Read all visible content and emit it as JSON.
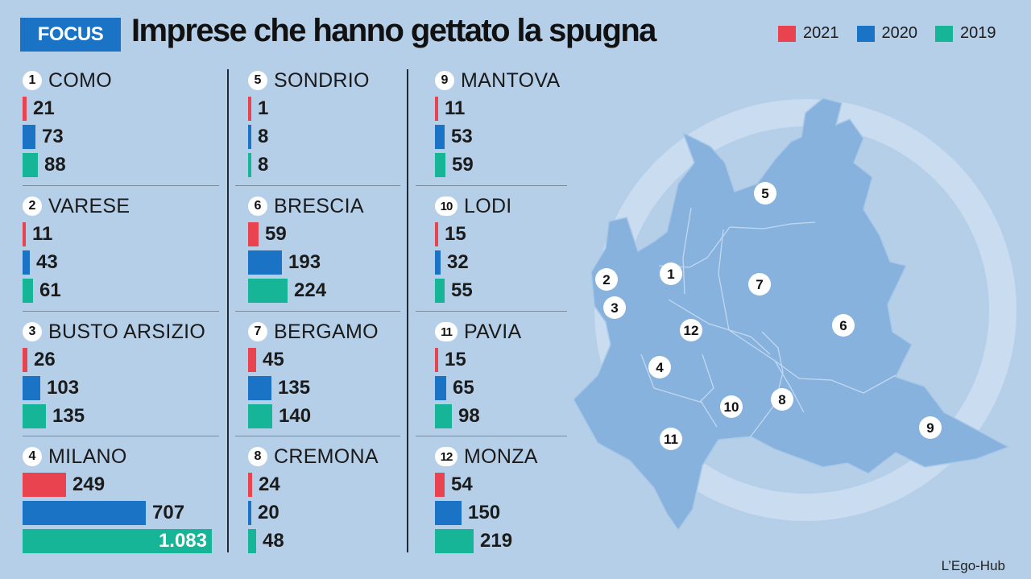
{
  "header": {
    "badge": "FOCUS",
    "title": "Imprese che hanno gettato la spugna"
  },
  "credit": "L’Ego-Hub",
  "colors": {
    "y2021": "#e8434f",
    "y2020": "#1a73c4",
    "y2019": "#17b597"
  },
  "chart_data": {
    "type": "bar",
    "orientation": "horizontal",
    "title": "Imprese che hanno gettato la spugna",
    "series": [
      {
        "name": "2021",
        "color": "#e8434f"
      },
      {
        "name": "2020",
        "color": "#1a73c4"
      },
      {
        "name": "2019",
        "color": "#17b597"
      }
    ],
    "provinces": [
      {
        "num": "1",
        "name": "COMO",
        "values": [
          21,
          73,
          88
        ],
        "labels": [
          "21",
          "73",
          "88"
        ]
      },
      {
        "num": "2",
        "name": "VARESE",
        "values": [
          11,
          43,
          61
        ],
        "labels": [
          "11",
          "43",
          "61"
        ]
      },
      {
        "num": "3",
        "name": "BUSTO ARSIZIO",
        "values": [
          26,
          103,
          135
        ],
        "labels": [
          "26",
          "103",
          "135"
        ]
      },
      {
        "num": "4",
        "name": "MILANO",
        "values": [
          249,
          707,
          1083
        ],
        "labels": [
          "249",
          "707",
          "1.083"
        ]
      },
      {
        "num": "5",
        "name": "SONDRIO",
        "values": [
          1,
          8,
          8
        ],
        "labels": [
          "1",
          "8",
          "8"
        ]
      },
      {
        "num": "6",
        "name": "BRESCIA",
        "values": [
          59,
          193,
          224
        ],
        "labels": [
          "59",
          "193",
          "224"
        ]
      },
      {
        "num": "7",
        "name": "BERGAMO",
        "values": [
          45,
          135,
          140
        ],
        "labels": [
          "45",
          "135",
          "140"
        ]
      },
      {
        "num": "8",
        "name": "CREMONA",
        "values": [
          24,
          20,
          48
        ],
        "labels": [
          "24",
          "20",
          "48"
        ]
      },
      {
        "num": "9",
        "name": "MANTOVA",
        "values": [
          11,
          53,
          59
        ],
        "labels": [
          "11",
          "53",
          "59"
        ]
      },
      {
        "num": "10",
        "name": "LODI",
        "values": [
          15,
          32,
          55
        ],
        "labels": [
          "15",
          "32",
          "55"
        ]
      },
      {
        "num": "11",
        "name": "PAVIA",
        "values": [
          15,
          65,
          98
        ],
        "labels": [
          "15",
          "65",
          "98"
        ]
      },
      {
        "num": "12",
        "name": "MONZA",
        "values": [
          54,
          150,
          219
        ],
        "labels": [
          "54",
          "150",
          "219"
        ]
      }
    ]
  },
  "map": {
    "labels": [
      "1",
      "2",
      "3",
      "4",
      "5",
      "6",
      "7",
      "8",
      "9",
      "10",
      "11",
      "12"
    ]
  }
}
